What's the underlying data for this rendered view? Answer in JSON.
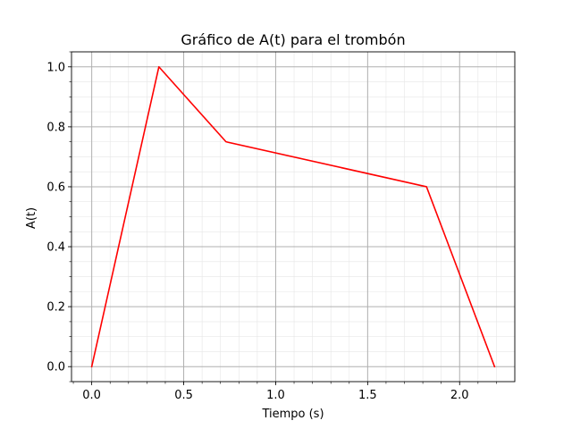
{
  "chart_data": {
    "type": "line",
    "title": "Gráfico de A(t) para el trombón",
    "xlabel": "Tiempo (s)",
    "ylabel": "A(t)",
    "xlim": [
      -0.11,
      2.3
    ],
    "ylim": [
      -0.05,
      1.05
    ],
    "xticks": [
      0.0,
      0.5,
      1.0,
      1.5,
      2.0
    ],
    "xtick_labels": [
      "0.0",
      "0.5",
      "1.0",
      "1.5",
      "2.0"
    ],
    "yticks": [
      0.0,
      0.2,
      0.4,
      0.6,
      0.8,
      1.0
    ],
    "ytick_labels": [
      "0.0",
      "0.2",
      "0.4",
      "0.6",
      "0.8",
      "1.0"
    ],
    "x_minor_step": 0.1,
    "y_minor_step": 0.05,
    "grid": true,
    "grid_minor": true,
    "legend": "none",
    "series": [
      {
        "color": "#ff0000",
        "x": [
          0.0,
          0.365,
          0.73,
          1.82,
          2.19
        ],
        "y": [
          0.0,
          1.0,
          0.75,
          0.6,
          0.0
        ]
      }
    ]
  }
}
